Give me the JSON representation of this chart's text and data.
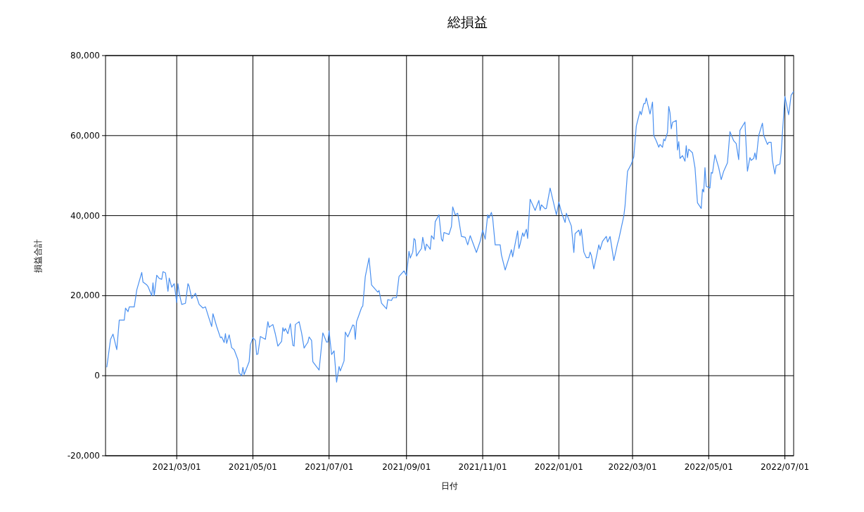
{
  "chart_data": {
    "type": "line",
    "title": "総損益",
    "xlabel": "日付",
    "ylabel": "損益合計",
    "grid": true,
    "xlim": [
      "2021-01-03",
      "2022-07-08"
    ],
    "xticks": [
      {
        "value": "2021-03-01",
        "label": "2021/03/01"
      },
      {
        "value": "2021-05-01",
        "label": "2021/05/01"
      },
      {
        "value": "2021-07-01",
        "label": "2021/07/01"
      },
      {
        "value": "2021-09-01",
        "label": "2021/09/01"
      },
      {
        "value": "2021-11-01",
        "label": "2021/11/01"
      },
      {
        "value": "2022-01-01",
        "label": "2022/01/01"
      },
      {
        "value": "2022-03-01",
        "label": "2022/03/01"
      },
      {
        "value": "2022-05-01",
        "label": "2022/05/01"
      },
      {
        "value": "2022-07-01",
        "label": "2022/07/01"
      }
    ],
    "ylim": [
      -20000,
      80000
    ],
    "yticks": [
      {
        "value": -20000,
        "label": "-20,000"
      },
      {
        "value": 0,
        "label": "0"
      },
      {
        "value": 20000,
        "label": "20,000"
      },
      {
        "value": 40000,
        "label": "40,000"
      },
      {
        "value": 60000,
        "label": "60,000"
      },
      {
        "value": 80000,
        "label": "80,000"
      }
    ],
    "x": [
      "2021-01-04",
      "2021-01-07",
      "2021-01-09",
      "2021-01-12",
      "2021-01-14",
      "2021-01-18",
      "2021-01-19",
      "2021-01-21",
      "2021-01-22",
      "2021-01-26",
      "2021-01-28",
      "2021-02-01",
      "2021-02-02",
      "2021-02-05",
      "2021-02-06",
      "2021-02-09",
      "2021-02-10",
      "2021-02-11",
      "2021-02-13",
      "2021-02-15",
      "2021-02-17",
      "2021-02-18",
      "2021-02-20",
      "2021-02-22",
      "2021-02-23",
      "2021-02-25",
      "2021-02-27",
      "2021-03-01",
      "2021-03-02",
      "2021-03-03",
      "2021-03-05",
      "2021-03-08",
      "2021-03-10",
      "2021-03-11",
      "2021-03-13",
      "2021-03-16",
      "2021-03-19",
      "2021-03-22",
      "2021-03-24",
      "2021-03-27",
      "2021-03-29",
      "2021-03-30",
      "2021-04-02",
      "2021-04-05",
      "2021-04-06",
      "2021-04-08",
      "2021-04-09",
      "2021-04-10",
      "2021-04-12",
      "2021-04-14",
      "2021-04-16",
      "2021-04-19",
      "2021-04-20",
      "2021-04-22",
      "2021-04-23",
      "2021-04-24",
      "2021-04-28",
      "2021-04-29",
      "2021-05-01",
      "2021-05-03",
      "2021-05-04",
      "2021-05-05",
      "2021-05-07",
      "2021-05-11",
      "2021-05-13",
      "2021-05-14",
      "2021-05-17",
      "2021-05-19",
      "2021-05-21",
      "2021-05-24",
      "2021-05-25",
      "2021-05-26",
      "2021-05-27",
      "2021-05-29",
      "2021-05-31",
      "2021-06-02",
      "2021-06-03",
      "2021-06-04",
      "2021-06-07",
      "2021-06-09",
      "2021-06-11",
      "2021-06-13",
      "2021-06-14",
      "2021-06-15",
      "2021-06-17",
      "2021-06-18",
      "2021-06-23",
      "2021-06-26",
      "2021-06-29",
      "2021-06-30",
      "2021-07-01",
      "2021-07-03",
      "2021-07-05",
      "2021-07-07",
      "2021-07-09",
      "2021-07-10",
      "2021-07-13",
      "2021-07-14",
      "2021-07-16",
      "2021-07-20",
      "2021-07-21",
      "2021-07-22",
      "2021-07-23",
      "2021-07-27",
      "2021-07-28",
      "2021-07-30",
      "2021-08-02",
      "2021-08-04",
      "2021-08-09",
      "2021-08-10",
      "2021-08-12",
      "2021-08-16",
      "2021-08-17",
      "2021-08-20",
      "2021-08-21",
      "2021-08-24",
      "2021-08-26",
      "2021-08-30",
      "2021-09-01",
      "2021-09-03",
      "2021-09-04",
      "2021-09-06",
      "2021-09-07",
      "2021-09-08",
      "2021-09-09",
      "2021-09-11",
      "2021-09-13",
      "2021-09-14",
      "2021-09-16",
      "2021-09-17",
      "2021-09-20",
      "2021-09-21",
      "2021-09-23",
      "2021-09-24",
      "2021-09-27",
      "2021-09-29",
      "2021-09-30",
      "2021-10-01",
      "2021-10-05",
      "2021-10-07",
      "2021-10-08",
      "2021-10-10",
      "2021-10-12",
      "2021-10-15",
      "2021-10-18",
      "2021-10-20",
      "2021-10-22",
      "2021-10-27",
      "2021-10-30",
      "2021-11-01",
      "2021-11-03",
      "2021-11-05",
      "2021-11-06",
      "2021-11-08",
      "2021-11-09",
      "2021-11-11",
      "2021-11-15",
      "2021-11-16",
      "2021-11-19",
      "2021-11-22",
      "2021-11-24",
      "2021-11-25",
      "2021-11-29",
      "2021-11-30",
      "2021-12-01",
      "2021-12-03",
      "2021-12-04",
      "2021-12-06",
      "2021-12-07",
      "2021-12-09",
      "2021-12-13",
      "2021-12-16",
      "2021-12-17",
      "2021-12-18",
      "2021-12-21",
      "2021-12-22",
      "2021-12-25",
      "2021-12-28",
      "2021-12-30",
      "2022-01-01",
      "2022-01-03",
      "2022-01-06",
      "2022-01-07",
      "2022-01-11",
      "2022-01-13",
      "2022-01-14",
      "2022-01-17",
      "2022-01-18",
      "2022-01-19",
      "2022-01-21",
      "2022-01-23",
      "2022-01-25",
      "2022-01-26",
      "2022-01-27",
      "2022-01-29",
      "2022-02-01",
      "2022-02-02",
      "2022-02-03",
      "2022-02-05",
      "2022-02-08",
      "2022-02-09",
      "2022-02-11",
      "2022-02-13",
      "2022-02-14",
      "2022-02-17",
      "2022-02-18",
      "2022-02-22",
      "2022-02-23",
      "2022-02-25",
      "2022-02-28",
      "2022-03-02",
      "2022-03-04",
      "2022-03-07",
      "2022-03-08",
      "2022-03-10",
      "2022-03-11",
      "2022-03-12",
      "2022-03-15",
      "2022-03-17",
      "2022-03-18",
      "2022-03-20",
      "2022-03-22",
      "2022-03-23",
      "2022-03-25",
      "2022-03-26",
      "2022-03-27",
      "2022-03-29",
      "2022-03-30",
      "2022-03-31",
      "2022-04-01",
      "2022-04-02",
      "2022-04-05",
      "2022-04-06",
      "2022-04-07",
      "2022-04-08",
      "2022-04-10",
      "2022-04-12",
      "2022-04-13",
      "2022-04-14",
      "2022-04-15",
      "2022-04-18",
      "2022-04-20",
      "2022-04-22",
      "2022-04-25",
      "2022-04-26",
      "2022-04-27",
      "2022-04-28",
      "2022-04-29",
      "2022-05-02",
      "2022-05-03",
      "2022-05-04",
      "2022-05-06",
      "2022-05-09",
      "2022-05-11",
      "2022-05-13",
      "2022-05-16",
      "2022-05-18",
      "2022-05-21",
      "2022-05-23",
      "2022-05-25",
      "2022-05-26",
      "2022-05-30",
      "2022-06-01",
      "2022-06-03",
      "2022-06-04",
      "2022-06-06",
      "2022-06-07",
      "2022-06-08",
      "2022-06-10",
      "2022-06-13",
      "2022-06-14",
      "2022-06-17",
      "2022-06-18",
      "2022-06-20",
      "2022-06-21",
      "2022-06-23",
      "2022-06-24",
      "2022-06-27",
      "2022-06-28",
      "2022-07-01",
      "2022-07-04",
      "2022-07-06",
      "2022-07-08"
    ],
    "series": [
      {
        "color": "#4a90f0",
        "values": [
          2100,
          9100,
          10400,
          6500,
          13900,
          13900,
          16900,
          16000,
          17200,
          17200,
          21400,
          25800,
          23400,
          22700,
          22300,
          20000,
          23200,
          20000,
          25100,
          24300,
          24100,
          26000,
          25700,
          21100,
          24400,
          22100,
          23000,
          18300,
          23000,
          20600,
          17800,
          18100,
          23000,
          22300,
          19300,
          20600,
          17800,
          16900,
          17200,
          14200,
          12300,
          15500,
          12300,
          9500,
          9700,
          8300,
          10500,
          8100,
          10200,
          7000,
          6500,
          4000,
          700,
          0,
          2100,
          300,
          3500,
          7700,
          9500,
          8800,
          5300,
          5400,
          9800,
          9100,
          13500,
          12100,
          12800,
          10400,
          7400,
          8600,
          12000,
          11100,
          11800,
          10500,
          13000,
          7600,
          7400,
          12800,
          13500,
          10700,
          6900,
          7900,
          8300,
          9700,
          8800,
          3500,
          1400,
          10700,
          8400,
          8400,
          11200,
          5300,
          6200,
          -1600,
          2300,
          1200,
          3700,
          10900,
          9700,
          12700,
          12500,
          9100,
          13500,
          17000,
          17400,
          24800,
          29400,
          22700,
          20900,
          21300,
          18100,
          16700,
          19000,
          18800,
          19500,
          19500,
          24800,
          26200,
          25000,
          31100,
          29400,
          30900,
          34300,
          33900,
          29900,
          30900,
          31800,
          34600,
          31300,
          32900,
          31600,
          35000,
          34100,
          38500,
          40200,
          34100,
          33600,
          35800,
          35300,
          37300,
          42200,
          40200,
          40600,
          34800,
          34600,
          32700,
          35000,
          30800,
          33600,
          36400,
          34100,
          40200,
          39400,
          40800,
          39400,
          32700,
          32700,
          30200,
          26400,
          29400,
          31500,
          29700,
          36200,
          31800,
          32900,
          35700,
          34800,
          36600,
          34300,
          44100,
          41300,
          43800,
          41300,
          42700,
          41700,
          41800,
          46900,
          42900,
          40200,
          43400,
          40900,
          38300,
          40600,
          37400,
          30800,
          35500,
          36400,
          35000,
          36600,
          30900,
          29500,
          29500,
          30900,
          30100,
          26700,
          31100,
          32700,
          31500,
          33600,
          34800,
          33400,
          34800,
          30800,
          28800,
          33000,
          34100,
          39900,
          42500,
          51100,
          52900,
          54700,
          62400,
          66100,
          65200,
          68000,
          68000,
          69400,
          65400,
          68400,
          60000,
          58700,
          57100,
          57800,
          57100,
          59100,
          58700,
          60800,
          67300,
          65700,
          61700,
          63300,
          63800,
          56400,
          58500,
          54300,
          55000,
          53600,
          57500,
          54500,
          56600,
          55700,
          52000,
          43200,
          41800,
          46600,
          45900,
          52000,
          47300,
          46900,
          50800,
          50600,
          55200,
          52000,
          49000,
          51100,
          53200,
          61000,
          58700,
          58000,
          54000,
          61300,
          63400,
          51100,
          54500,
          53800,
          54300,
          55700,
          54000,
          60000,
          63100,
          60100,
          57800,
          58300,
          58300,
          53800,
          50400,
          52500,
          52900,
          55700,
          69800,
          65200,
          70100,
          71000
        ]
      }
    ]
  }
}
